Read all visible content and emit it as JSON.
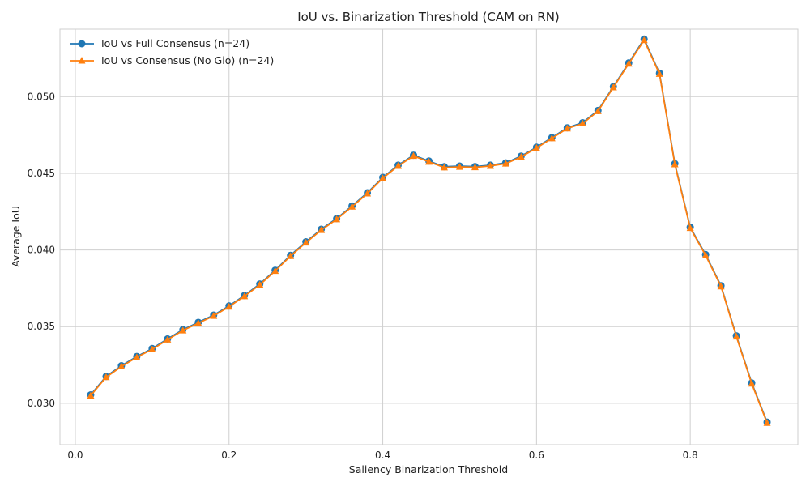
{
  "chart_data": {
    "type": "line",
    "title": "IoU vs. Binarization Threshold (CAM on RN)",
    "xlabel": "Saliency Binarization Threshold",
    "ylabel": "Average IoU",
    "xlim": [
      -0.02,
      0.94
    ],
    "ylim": [
      0.0273,
      0.0544
    ],
    "xticks": [
      0.0,
      0.2,
      0.4,
      0.6,
      0.8
    ],
    "xtick_labels": [
      "0.0",
      "0.2",
      "0.4",
      "0.6",
      "0.8"
    ],
    "yticks": [
      0.03,
      0.035,
      0.04,
      0.045,
      0.05
    ],
    "ytick_labels": [
      "0.030",
      "0.035",
      "0.040",
      "0.045",
      "0.050"
    ],
    "grid": true,
    "legend_position": "top-left",
    "x": [
      0.02,
      0.04,
      0.06,
      0.08,
      0.1,
      0.12,
      0.14,
      0.16,
      0.18,
      0.2,
      0.22,
      0.24,
      0.26,
      0.28,
      0.3,
      0.32,
      0.34,
      0.36,
      0.38,
      0.4,
      0.42,
      0.44,
      0.46,
      0.48,
      0.5,
      0.52,
      0.54,
      0.56,
      0.58,
      0.6,
      0.62,
      0.64,
      0.66,
      0.68,
      0.7,
      0.72,
      0.74,
      0.76,
      0.78,
      0.8,
      0.82,
      0.84,
      0.86,
      0.88,
      0.9
    ],
    "series": [
      {
        "name": "IoU vs Full Consensus (n=24)",
        "color": "#1f77b4",
        "marker": "circle",
        "values": [
          0.03055,
          0.03175,
          0.03245,
          0.03305,
          0.03357,
          0.0342,
          0.0348,
          0.03528,
          0.03575,
          0.03635,
          0.03703,
          0.03778,
          0.03868,
          0.03965,
          0.04053,
          0.04135,
          0.04205,
          0.04287,
          0.04373,
          0.04473,
          0.04553,
          0.04618,
          0.0458,
          0.04543,
          0.04547,
          0.04544,
          0.04553,
          0.04568,
          0.04612,
          0.0467,
          0.04733,
          0.04797,
          0.0483,
          0.0491,
          0.05065,
          0.0522,
          0.05375,
          0.05153,
          0.04563,
          0.04148,
          0.0397,
          0.03767,
          0.0344,
          0.03133,
          0.02877
        ]
      },
      {
        "name": "IoU vs Consensus (No Gio) (n=24)",
        "color": "#ff7f0e",
        "marker": "triangle",
        "values": [
          0.0305,
          0.0317,
          0.0324,
          0.033,
          0.03352,
          0.03415,
          0.03475,
          0.03523,
          0.0357,
          0.0363,
          0.03698,
          0.03773,
          0.03863,
          0.0396,
          0.04048,
          0.0413,
          0.042,
          0.04282,
          0.04368,
          0.04468,
          0.04548,
          0.04613,
          0.04575,
          0.04538,
          0.04542,
          0.04539,
          0.04548,
          0.04563,
          0.04607,
          0.04665,
          0.04728,
          0.04792,
          0.04825,
          0.04905,
          0.0506,
          0.05215,
          0.05368,
          0.05148,
          0.04558,
          0.04143,
          0.03965,
          0.03762,
          0.03435,
          0.03128,
          0.02872
        ]
      }
    ]
  }
}
